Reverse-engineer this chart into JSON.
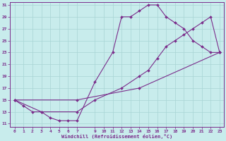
{
  "xlabel": "Windchill (Refroidissement éolien,°C)",
  "bg_color": "#c8ecec",
  "line_color": "#7b2d8b",
  "grid_color": "#a8d4d4",
  "line1_x": [
    0,
    1,
    2,
    3,
    4,
    5,
    6,
    7,
    9,
    11,
    12,
    13,
    14,
    15,
    16,
    17,
    18,
    19,
    20,
    21,
    22,
    23
  ],
  "line1_y": [
    15,
    14,
    13,
    13,
    12,
    11.5,
    11.5,
    11.5,
    18,
    23,
    29,
    29,
    30,
    31,
    31,
    29,
    28,
    27,
    25,
    24,
    23,
    23
  ],
  "line2_x": [
    0,
    3,
    7,
    9,
    12,
    14,
    15,
    16,
    17,
    18,
    19,
    20,
    21,
    22,
    23
  ],
  "line2_y": [
    15,
    13,
    13,
    15,
    17,
    19,
    20,
    22,
    24,
    25,
    26,
    27,
    28,
    29,
    23
  ],
  "line3_x": [
    0,
    7,
    14,
    23
  ],
  "line3_y": [
    15,
    15,
    17,
    23
  ],
  "xlim_min": -0.5,
  "xlim_max": 23.5,
  "ylim_min": 10.5,
  "ylim_max": 31.5,
  "xticks": [
    0,
    1,
    2,
    3,
    4,
    5,
    6,
    7,
    9,
    10,
    11,
    12,
    13,
    14,
    15,
    16,
    17,
    18,
    19,
    20,
    21,
    22,
    23
  ],
  "yticks": [
    11,
    13,
    15,
    17,
    19,
    21,
    23,
    25,
    27,
    29,
    31
  ]
}
